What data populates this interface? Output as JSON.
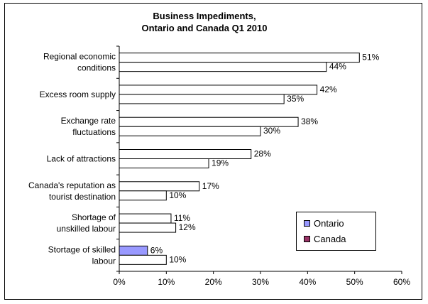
{
  "chart_data": {
    "type": "bar",
    "orientation": "horizontal",
    "title_line1": "Business Impediments,",
    "title_line2": "Ontario and Canada Q1 2010",
    "categories": [
      [
        "Regional economic",
        "conditions"
      ],
      [
        "Excess room supply"
      ],
      [
        "Exchange rate",
        "fluctuations"
      ],
      [
        "Lack of attractions"
      ],
      [
        "Canada's reputation as",
        "tourist destination"
      ],
      [
        "Shortage of",
        "unskilled labour"
      ],
      [
        "Stortage of skilled",
        "labour"
      ]
    ],
    "series": [
      {
        "name": "Ontario",
        "color": "#9999ff",
        "fill_visible": [
          false,
          false,
          false,
          false,
          false,
          false,
          true
        ],
        "values": [
          51,
          42,
          38,
          28,
          17,
          11,
          6
        ],
        "labels": [
          "51%",
          "42%",
          "38%",
          "28%",
          "17%",
          "11%",
          "6%"
        ]
      },
      {
        "name": "Canada",
        "color": "#993366",
        "fill_visible": [
          false,
          false,
          false,
          false,
          false,
          false,
          false
        ],
        "values": [
          44,
          35,
          30,
          19,
          10,
          12,
          10
        ],
        "labels": [
          "44%",
          "35%",
          "30%",
          "19%",
          "10%",
          "12%",
          "10%"
        ]
      }
    ],
    "xlim": [
      0,
      60
    ],
    "xticks": [
      "0%",
      "10%",
      "20%",
      "30%",
      "40%",
      "50%",
      "60%"
    ],
    "legend_position": "bottom-right",
    "grid": false
  }
}
